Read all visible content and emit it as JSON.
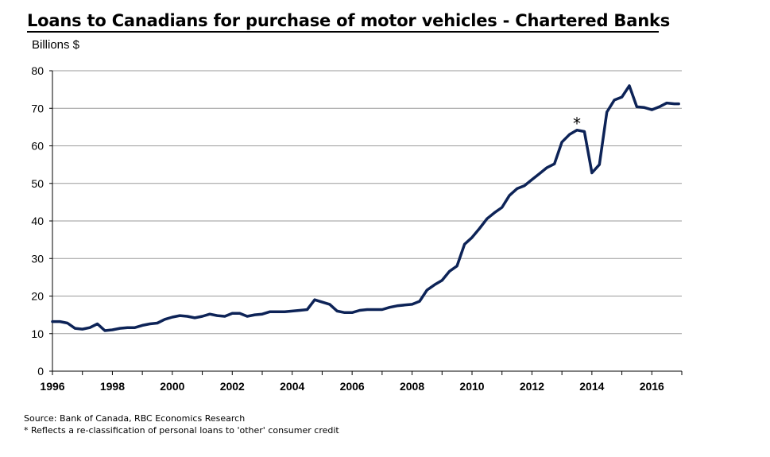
{
  "chart_data": {
    "type": "line",
    "title": "Loans to Canadians for purchase of motor vehicles - Chartered Banks",
    "ylabel": "Billions $",
    "xlabel": "",
    "ylim": [
      0,
      80
    ],
    "xlim": [
      1996,
      2017
    ],
    "yticks": [
      "0",
      "10",
      "20",
      "30",
      "40",
      "50",
      "60",
      "70",
      "80"
    ],
    "xticks": [
      "1996",
      "1998",
      "2000",
      "2002",
      "2004",
      "2006",
      "2008",
      "2010",
      "2012",
      "2014",
      "2016"
    ],
    "grid": true,
    "line_color": "#0d2357",
    "annotation": {
      "text": "*",
      "x": 2013.5,
      "y": 67
    },
    "series": [
      {
        "x": [
          1996.0,
          1996.25,
          1996.5,
          1996.75,
          1997.0,
          1997.25,
          1997.5,
          1997.75,
          1998.0,
          1998.25,
          1998.5,
          1998.75,
          1999.0,
          1999.25,
          1999.5,
          1999.75,
          2000.0,
          2000.25,
          2000.5,
          2000.75,
          2001.0,
          2001.25,
          2001.5,
          2001.75,
          2002.0,
          2002.25,
          2002.5,
          2002.75,
          2003.0,
          2003.25,
          2003.5,
          2003.75,
          2004.0,
          2004.25,
          2004.5,
          2004.75,
          2005.0,
          2005.25,
          2005.5,
          2005.75,
          2006.0,
          2006.25,
          2006.5,
          2006.75,
          2007.0,
          2007.25,
          2007.5,
          2007.75,
          2008.0,
          2008.25,
          2008.5,
          2008.75,
          2009.0,
          2009.25,
          2009.5,
          2009.75,
          2010.0,
          2010.25,
          2010.5,
          2010.75,
          2011.0,
          2011.25,
          2011.5,
          2011.75,
          2012.0,
          2012.25,
          2012.5,
          2012.75,
          2013.0,
          2013.25,
          2013.5,
          2013.75,
          2014.0,
          2014.25,
          2014.5,
          2014.75,
          2015.0,
          2015.25,
          2015.5,
          2015.75,
          2016.0,
          2016.25,
          2016.5,
          2016.75,
          2016.9
        ],
        "values": [
          13.2,
          13.2,
          12.8,
          11.4,
          11.2,
          11.6,
          12.6,
          10.8,
          11.0,
          11.4,
          11.6,
          11.6,
          12.2,
          12.6,
          12.8,
          13.8,
          14.4,
          14.8,
          14.6,
          14.2,
          14.6,
          15.2,
          14.8,
          14.6,
          15.4,
          15.4,
          14.6,
          15.0,
          15.2,
          15.8,
          15.8,
          15.8,
          16.0,
          16.2,
          16.4,
          19.0,
          18.4,
          17.8,
          16.0,
          15.6,
          15.6,
          16.2,
          16.4,
          16.4,
          16.4,
          17.0,
          17.4,
          17.6,
          17.8,
          18.6,
          21.6,
          23.0,
          24.2,
          26.6,
          28.0,
          33.8,
          35.6,
          38.0,
          40.6,
          42.2,
          43.6,
          46.8,
          48.6,
          49.4,
          51.0,
          52.6,
          54.2,
          55.2,
          61.0,
          63.0,
          64.2,
          63.8,
          52.8,
          55.0,
          69.0,
          72.2,
          73.0,
          76.0,
          70.4,
          70.2,
          69.6,
          70.4,
          71.4,
          71.2,
          71.2
        ]
      }
    ]
  },
  "footer": {
    "source": "Source:  Bank of Canada, RBC Economics Research",
    "note": "* Reflects  a re-classification of personal loans to 'other' consumer credit"
  }
}
